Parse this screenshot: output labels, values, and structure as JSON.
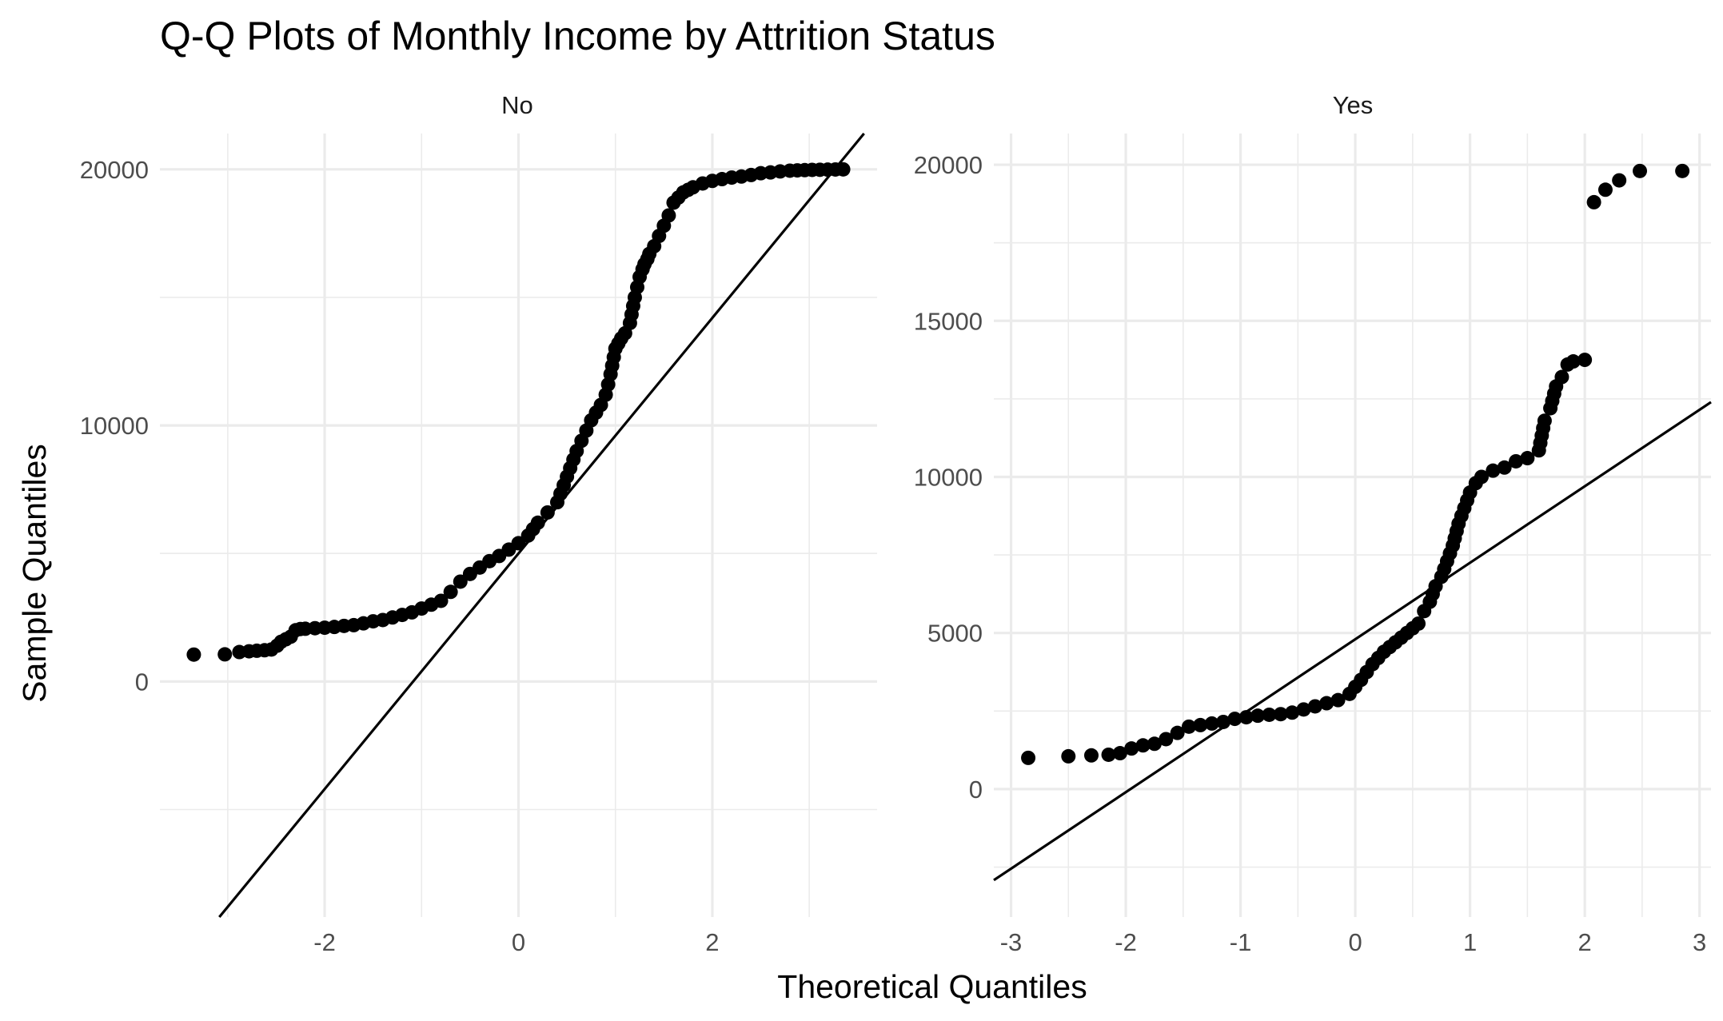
{
  "chart_data": {
    "type": "scatter",
    "title": "Q-Q Plots of Monthly Income by Attrition Status",
    "xlabel": "Theoretical Quantiles",
    "ylabel": "Sample Quantiles",
    "grid": true,
    "colors": {
      "points": "#000000",
      "line": "#000000",
      "grid": "#ebebeb",
      "tick_text": "#4d4d4d"
    },
    "panels": [
      {
        "name": "No",
        "xlim": [
          -3.7,
          3.7
        ],
        "ylim": [
          -9200,
          21400
        ],
        "xticks": [
          -2,
          0,
          2
        ],
        "xtick_labels": [
          "-2",
          "0",
          "2"
        ],
        "yticks": [
          0,
          10000,
          20000
        ],
        "ytick_labels": [
          "0",
          "10000",
          "20000"
        ],
        "reference_line": {
          "intercept": 5000,
          "slope": 4600
        },
        "points_x": [
          -3.35,
          -3.03,
          -2.88,
          -2.78,
          -2.7,
          -2.62,
          -2.55,
          -2.49,
          -2.45,
          -2.4,
          -2.35,
          -2.3,
          -2.25,
          -2.2,
          -2.1,
          -2.0,
          -1.9,
          -1.8,
          -1.7,
          -1.6,
          -1.5,
          -1.4,
          -1.3,
          -1.2,
          -1.1,
          -1.0,
          -0.9,
          -0.8,
          -0.7,
          -0.6,
          -0.5,
          -0.4,
          -0.3,
          -0.2,
          -0.1,
          0.0,
          0.1,
          0.2,
          0.3,
          0.4,
          0.5,
          0.6,
          0.65,
          0.7,
          0.75,
          0.8,
          0.85,
          0.9,
          0.95,
          1.0,
          1.03,
          1.06,
          1.1,
          1.15,
          1.2,
          1.25,
          1.28,
          1.3,
          1.33,
          1.35,
          1.4,
          1.45,
          1.5,
          1.55,
          1.6,
          1.65,
          1.7,
          1.75,
          1.8,
          1.9,
          2.0,
          2.1,
          2.2,
          2.3,
          2.4,
          2.5,
          2.6,
          2.7,
          2.8,
          3.03,
          3.35
        ],
        "points_y": [
          1050,
          1060,
          1150,
          1180,
          1200,
          1220,
          1250,
          1400,
          1550,
          1650,
          1750,
          2000,
          2050,
          2060,
          2080,
          2100,
          2130,
          2170,
          2200,
          2270,
          2350,
          2400,
          2500,
          2600,
          2700,
          2850,
          3000,
          3150,
          3500,
          3900,
          4200,
          4450,
          4700,
          4900,
          5150,
          5400,
          5700,
          6200,
          6600,
          7000,
          8000,
          9000,
          9400,
          9800,
          10200,
          10500,
          10800,
          11200,
          12000,
          13000,
          13200,
          13400,
          13600,
          14000,
          15000,
          15800,
          16100,
          16300,
          16500,
          16700,
          17000,
          17400,
          17800,
          18200,
          18700,
          18900,
          19100,
          19200,
          19300,
          19450,
          19550,
          19620,
          19680,
          19720,
          19780,
          19850,
          19880,
          19920,
          19950,
          19980,
          20000
        ]
      },
      {
        "name": "Yes",
        "xlim": [
          -3.15,
          3.1
        ],
        "ylim": [
          -4100,
          21000
        ],
        "xticks": [
          -3,
          -2,
          -1,
          0,
          1,
          2,
          3
        ],
        "xtick_labels": [
          "-3",
          "-2",
          "-1",
          "0",
          "1",
          "2",
          "3"
        ],
        "yticks": [
          0,
          5000,
          10000,
          15000,
          20000
        ],
        "ytick_labels": [
          "0",
          "5000",
          "10000",
          "15000",
          "20000"
        ],
        "reference_line": {
          "intercept": 4800,
          "slope": 2450
        },
        "points_x": [
          -2.85,
          -2.5,
          -2.3,
          -2.15,
          -2.05,
          -1.95,
          -1.85,
          -1.75,
          -1.65,
          -1.55,
          -1.45,
          -1.35,
          -1.25,
          -1.15,
          -1.05,
          -0.95,
          -0.85,
          -0.75,
          -0.65,
          -0.55,
          -0.45,
          -0.35,
          -0.25,
          -0.15,
          -0.05,
          0.05,
          0.15,
          0.25,
          0.35,
          0.45,
          0.55,
          0.6,
          0.65,
          0.7,
          0.75,
          0.8,
          0.85,
          0.9,
          0.95,
          1.0,
          1.05,
          1.1,
          1.2,
          1.3,
          1.4,
          1.5,
          1.6,
          1.65,
          1.7,
          1.75,
          1.8,
          1.85,
          1.9,
          2.0,
          2.08,
          2.18,
          2.3,
          2.48,
          2.85
        ],
        "points_y": [
          1000,
          1050,
          1080,
          1100,
          1150,
          1300,
          1400,
          1450,
          1600,
          1800,
          2000,
          2050,
          2100,
          2150,
          2250,
          2300,
          2350,
          2380,
          2400,
          2450,
          2550,
          2650,
          2750,
          2850,
          3050,
          3500,
          4000,
          4400,
          4700,
          5000,
          5300,
          5700,
          6000,
          6500,
          6800,
          7300,
          7800,
          8500,
          9000,
          9500,
          9800,
          10000,
          10200,
          10300,
          10500,
          10600,
          10850,
          11800,
          12200,
          12900,
          13200,
          13600,
          13700,
          13750,
          18800,
          19200,
          19500,
          19800,
          19800
        ]
      }
    ]
  }
}
